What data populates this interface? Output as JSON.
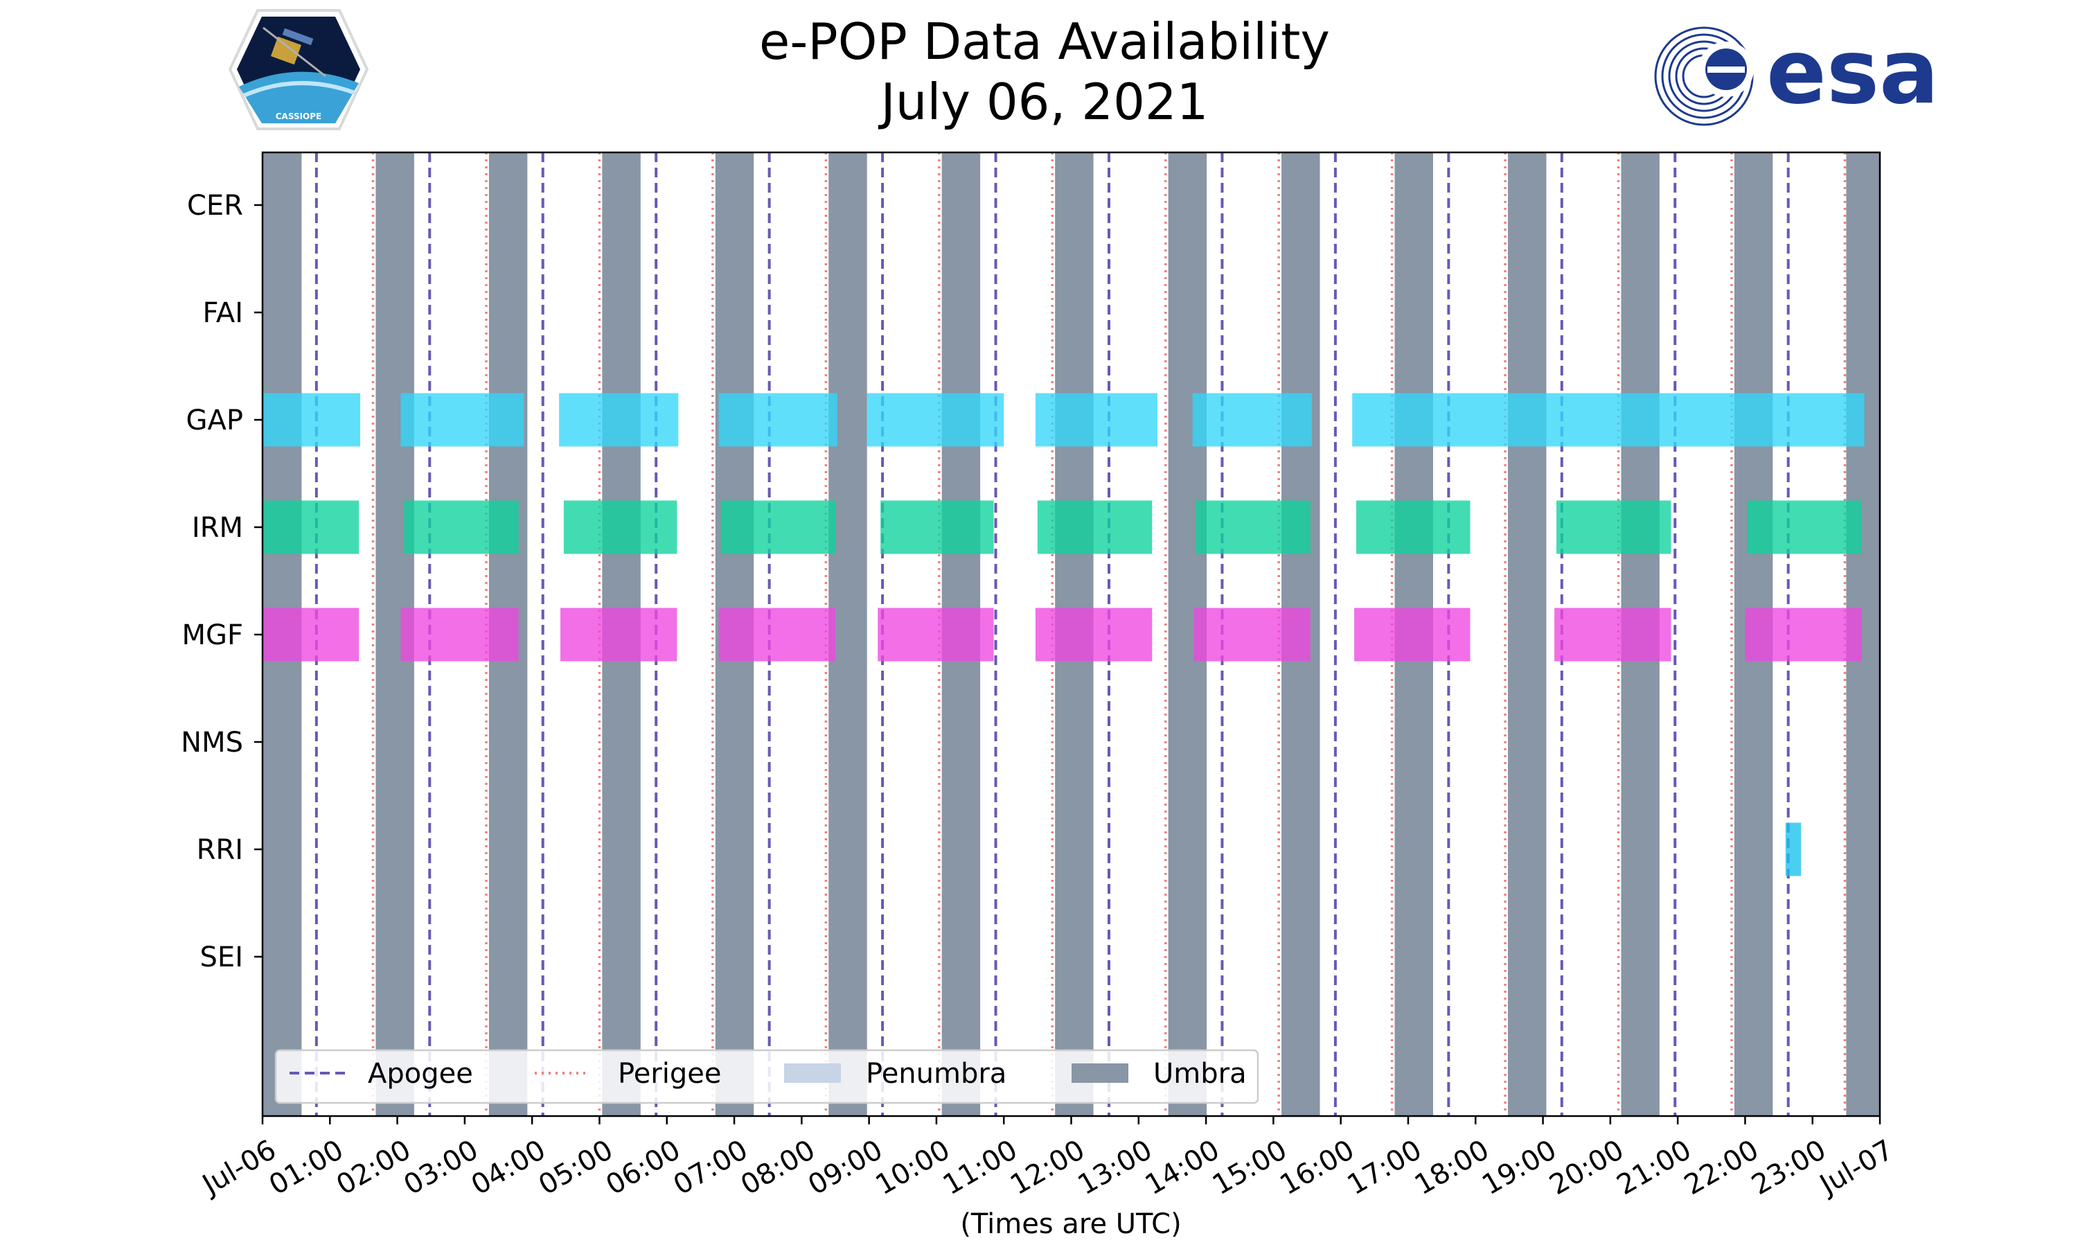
{
  "chart_data": {
    "type": "timeline",
    "title": "e-POP Data Availability",
    "subtitle": "July 06, 2021",
    "xlabel": "(Times are UTC)",
    "xlim_hours": [
      0,
      24
    ],
    "x_tick_labels": [
      "Jul-06",
      "01:00",
      "02:00",
      "03:00",
      "04:00",
      "05:00",
      "06:00",
      "07:00",
      "08:00",
      "09:00",
      "10:00",
      "11:00",
      "12:00",
      "13:00",
      "14:00",
      "15:00",
      "16:00",
      "17:00",
      "18:00",
      "19:00",
      "20:00",
      "21:00",
      "22:00",
      "23:00",
      "Jul-07"
    ],
    "instruments": [
      "CER",
      "FAI",
      "GAP",
      "IRM",
      "MGF",
      "NMS",
      "RRI",
      "SEI"
    ],
    "umbra_hours": [
      [
        0.0,
        0.58
      ],
      [
        1.68,
        2.25
      ],
      [
        3.36,
        3.93
      ],
      [
        5.04,
        5.61
      ],
      [
        6.72,
        7.29
      ],
      [
        8.4,
        8.97
      ],
      [
        10.08,
        10.65
      ],
      [
        11.76,
        12.33
      ],
      [
        13.44,
        14.01
      ],
      [
        15.12,
        15.69
      ],
      [
        16.8,
        17.37
      ],
      [
        18.48,
        19.05
      ],
      [
        20.16,
        20.73
      ],
      [
        21.84,
        22.41
      ],
      [
        23.5,
        24.0
      ]
    ],
    "apogee_hours": [
      0.8,
      2.48,
      4.16,
      5.84,
      7.52,
      9.2,
      10.88,
      12.56,
      14.24,
      15.92,
      17.6,
      19.28,
      20.96,
      22.64
    ],
    "perigee_hours": [
      1.64,
      3.32,
      5.0,
      6.68,
      8.36,
      10.04,
      11.72,
      13.4,
      15.08,
      16.76,
      18.44,
      20.12,
      21.8,
      23.48
    ],
    "availability": [
      {
        "instrument": "GAP",
        "color": "#33d6fa",
        "segments": [
          [
            0.0,
            1.45
          ],
          [
            2.05,
            3.88
          ],
          [
            4.4,
            6.17
          ],
          [
            6.77,
            8.53
          ],
          [
            8.97,
            11.0
          ],
          [
            11.47,
            13.28
          ],
          [
            13.8,
            15.57
          ],
          [
            16.17,
            23.77
          ]
        ]
      },
      {
        "instrument": "IRM",
        "color": "#0dd29c",
        "segments": [
          [
            0.0,
            1.43
          ],
          [
            2.1,
            3.8
          ],
          [
            4.47,
            6.15
          ],
          [
            6.8,
            8.5
          ],
          [
            9.17,
            10.85
          ],
          [
            11.5,
            13.2
          ],
          [
            13.85,
            15.55
          ],
          [
            16.23,
            17.92
          ],
          [
            19.2,
            20.9
          ],
          [
            22.03,
            23.73
          ]
        ]
      },
      {
        "instrument": "MGF",
        "color": "#ee47e0",
        "segments": [
          [
            0.0,
            1.43
          ],
          [
            2.05,
            3.8
          ],
          [
            4.42,
            6.15
          ],
          [
            6.77,
            8.5
          ],
          [
            9.13,
            10.85
          ],
          [
            11.47,
            13.2
          ],
          [
            13.82,
            15.55
          ],
          [
            16.2,
            17.92
          ],
          [
            19.17,
            20.9
          ],
          [
            22.0,
            23.73
          ]
        ]
      },
      {
        "instrument": "RRI",
        "color": "#18c2ec",
        "segments": [
          [
            22.6,
            22.83
          ]
        ]
      }
    ],
    "legend": {
      "position": "lower-left",
      "entries": [
        "Apogee",
        "Perigee",
        "Penumbra",
        "Umbra"
      ]
    },
    "colors": {
      "umbra": "#8896a5",
      "penumbra": "#c6d4e6",
      "apogee": "#6a58b5",
      "perigee": "#f08080"
    }
  },
  "logos": {
    "left": "CASSIOPE",
    "right": "esa"
  }
}
